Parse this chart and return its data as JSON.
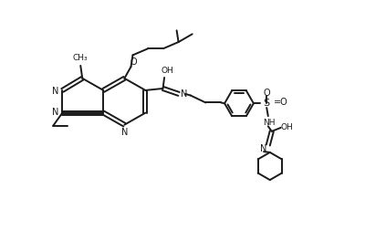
{
  "background_color": "#ffffff",
  "line_color": "#1a1a1a",
  "line_width": 1.4,
  "figsize": [
    4.23,
    2.75
  ],
  "dpi": 100,
  "xlim": [
    0,
    10.5
  ],
  "ylim": [
    0,
    6.5
  ]
}
